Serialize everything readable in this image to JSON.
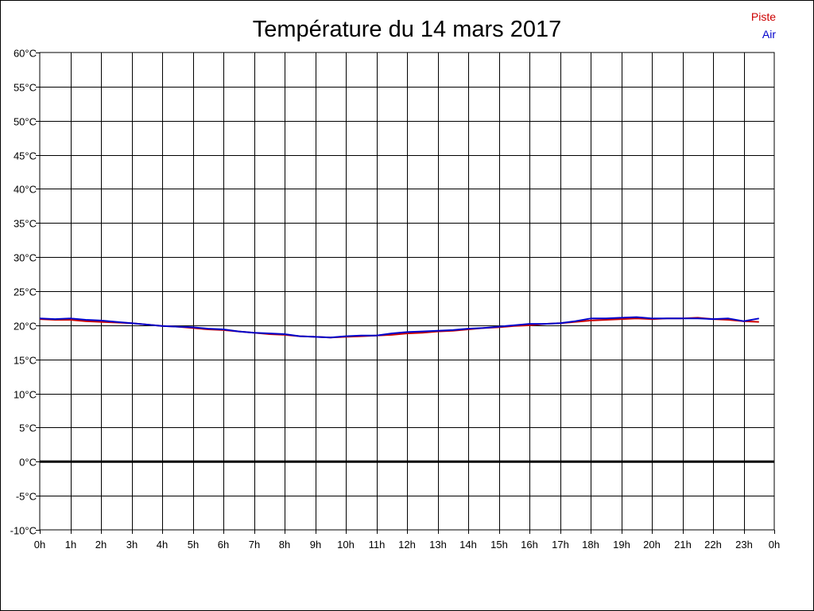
{
  "chart_data": {
    "type": "line",
    "title": "Température du 14 mars 2017",
    "xlabel": "",
    "ylabel": "",
    "x_tick_labels": [
      "0h",
      "1h",
      "2h",
      "3h",
      "4h",
      "5h",
      "6h",
      "7h",
      "8h",
      "9h",
      "10h",
      "11h",
      "12h",
      "13h",
      "14h",
      "15h",
      "16h",
      "17h",
      "18h",
      "19h",
      "20h",
      "21h",
      "22h",
      "23h",
      "0h"
    ],
    "y_tick_labels": [
      "60°C",
      "55°C",
      "50°C",
      "45°C",
      "40°C",
      "35°C",
      "30°C",
      "25°C",
      "20°C",
      "15°C",
      "10°C",
      "5°C",
      "0°C",
      "-5°C",
      "-10°C"
    ],
    "xlim": [
      0,
      24
    ],
    "ylim": [
      -10,
      60
    ],
    "y_step": 5,
    "grid": true,
    "zero_line": true,
    "legend_position": "top-right",
    "series": [
      {
        "name": "Piste",
        "color": "#cc0000",
        "x": [
          0,
          0.5,
          1,
          1.5,
          2,
          2.5,
          3,
          3.5,
          4,
          4.5,
          5,
          5.5,
          6,
          6.5,
          7,
          7.5,
          8,
          8.5,
          9,
          9.5,
          10,
          10.5,
          11,
          11.5,
          12,
          12.5,
          13,
          13.5,
          14,
          14.5,
          15,
          15.5,
          16,
          16.5,
          17,
          17.5,
          18,
          18.5,
          19,
          19.5,
          20,
          20.5,
          21,
          21.5,
          22,
          22.5,
          23,
          23.5
        ],
        "values": [
          20.9,
          20.8,
          20.8,
          20.6,
          20.5,
          20.4,
          20.3,
          20.1,
          19.9,
          19.8,
          19.6,
          19.4,
          19.3,
          19.1,
          18.9,
          18.7,
          18.6,
          18.4,
          18.3,
          18.2,
          18.3,
          18.4,
          18.5,
          18.6,
          18.8,
          18.9,
          19.1,
          19.2,
          19.4,
          19.6,
          19.7,
          19.9,
          20.0,
          20.2,
          20.3,
          20.5,
          20.7,
          20.8,
          20.9,
          21.0,
          20.9,
          21.0,
          21.0,
          21.1,
          20.9,
          20.8,
          20.6,
          20.5
        ]
      },
      {
        "name": "Air",
        "color": "#0000cc",
        "x": [
          0,
          0.5,
          1,
          1.5,
          2,
          2.5,
          3,
          3.5,
          4,
          4.5,
          5,
          5.5,
          6,
          6.5,
          7,
          7.5,
          8,
          8.5,
          9,
          9.5,
          10,
          10.5,
          11,
          11.5,
          12,
          12.5,
          13,
          13.5,
          14,
          14.5,
          15,
          15.5,
          16,
          16.5,
          17,
          17.5,
          18,
          18.5,
          19,
          19.5,
          20,
          20.5,
          21,
          21.5,
          22,
          22.5,
          23,
          23.5
        ],
        "values": [
          21.0,
          20.9,
          21.0,
          20.8,
          20.7,
          20.5,
          20.3,
          20.1,
          19.9,
          19.8,
          19.7,
          19.5,
          19.4,
          19.1,
          18.9,
          18.8,
          18.7,
          18.4,
          18.3,
          18.2,
          18.4,
          18.5,
          18.5,
          18.8,
          19.0,
          19.1,
          19.2,
          19.3,
          19.5,
          19.6,
          19.8,
          20.0,
          20.2,
          20.2,
          20.3,
          20.6,
          21.0,
          21.0,
          21.1,
          21.2,
          21.0,
          21.0,
          21.0,
          21.0,
          20.9,
          21.0,
          20.6,
          21.0
        ]
      }
    ]
  }
}
